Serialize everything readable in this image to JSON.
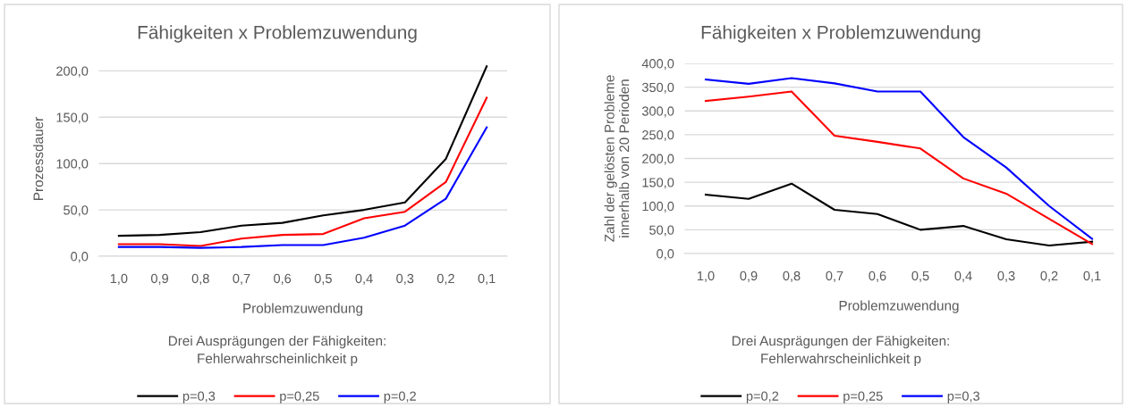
{
  "chart_data": [
    {
      "type": "line",
      "title": "Fähigkeiten x Problemzuwendung",
      "xlabel": "Problemzuwendung",
      "ylabel": "Prozessdauer",
      "legend_title": "Drei Ausprägungen der Fähigkeiten:\nFehlerwahrscheinlichkeit p",
      "categories": [
        "1,0",
        "0,9",
        "0,8",
        "0,7",
        "0,6",
        "0,5",
        "0,4",
        "0,3",
        "0,2",
        "0,1"
      ],
      "series": [
        {
          "name": "p=0,3",
          "color": "#000000",
          "values": [
            22,
            23,
            26,
            33,
            36,
            44,
            50,
            58,
            105,
            205
          ]
        },
        {
          "name": "p=0,25",
          "color": "#ff0000",
          "values": [
            13,
            13,
            11,
            19,
            23,
            24,
            41,
            48,
            80,
            171
          ]
        },
        {
          "name": "p=0,2",
          "color": "#0000ff",
          "values": [
            10,
            10,
            9,
            10,
            12,
            12,
            20,
            33,
            62,
            139
          ]
        }
      ],
      "ylim": [
        0,
        210
      ],
      "yticks": [
        {
          "value": 0,
          "label": "0,0"
        },
        {
          "value": 50,
          "label": "50,0"
        },
        {
          "value": 100,
          "label": "100,0"
        },
        {
          "value": 150,
          "label": "150,0"
        },
        {
          "value": 200,
          "label": "200,0"
        }
      ],
      "grid": "y",
      "legend": "bottom",
      "marker": "none",
      "line_style": "solid"
    },
    {
      "type": "line",
      "title": "Fähigkeiten x Problemzuwendung",
      "xlabel": "Problemzuwendung",
      "ylabel": "Zahl der gelösten Probleme\ninnerhalb von 20 Perioden",
      "legend_title": "Drei Ausprägungen der Fähigkeiten:\nFehlerwahrscheinlichkeit p",
      "categories": [
        "1,0",
        "0,9",
        "0,8",
        "0,7",
        "0,6",
        "0,5",
        "0,4",
        "0,3",
        "0,2",
        "0,1"
      ],
      "series": [
        {
          "name": "p=0,2",
          "color": "#000000",
          "values": [
            124,
            115,
            147,
            92,
            83,
            50,
            58,
            30,
            17,
            25
          ]
        },
        {
          "name": "p=0,25",
          "color": "#ff0000",
          "values": [
            321,
            330,
            341,
            248,
            235,
            221,
            158,
            126,
            73,
            20
          ]
        },
        {
          "name": "p=0,3",
          "color": "#0000ff",
          "values": [
            366,
            357,
            369,
            358,
            341,
            341,
            245,
            181,
            100,
            31
          ]
        }
      ],
      "ylim": [
        0,
        400
      ],
      "yticks": [
        {
          "value": 0,
          "label": "0,0"
        },
        {
          "value": 50,
          "label": "50,0"
        },
        {
          "value": 100,
          "label": "100,0"
        },
        {
          "value": 150,
          "label": "150,0"
        },
        {
          "value": 200,
          "label": "200,0"
        },
        {
          "value": 250,
          "label": "250,0"
        },
        {
          "value": 300,
          "label": "300,0"
        },
        {
          "value": 350,
          "label": "350,0"
        },
        {
          "value": 400,
          "label": "400,0"
        }
      ],
      "grid": "y",
      "legend": "bottom",
      "marker": "none",
      "line_style": "solid"
    }
  ]
}
